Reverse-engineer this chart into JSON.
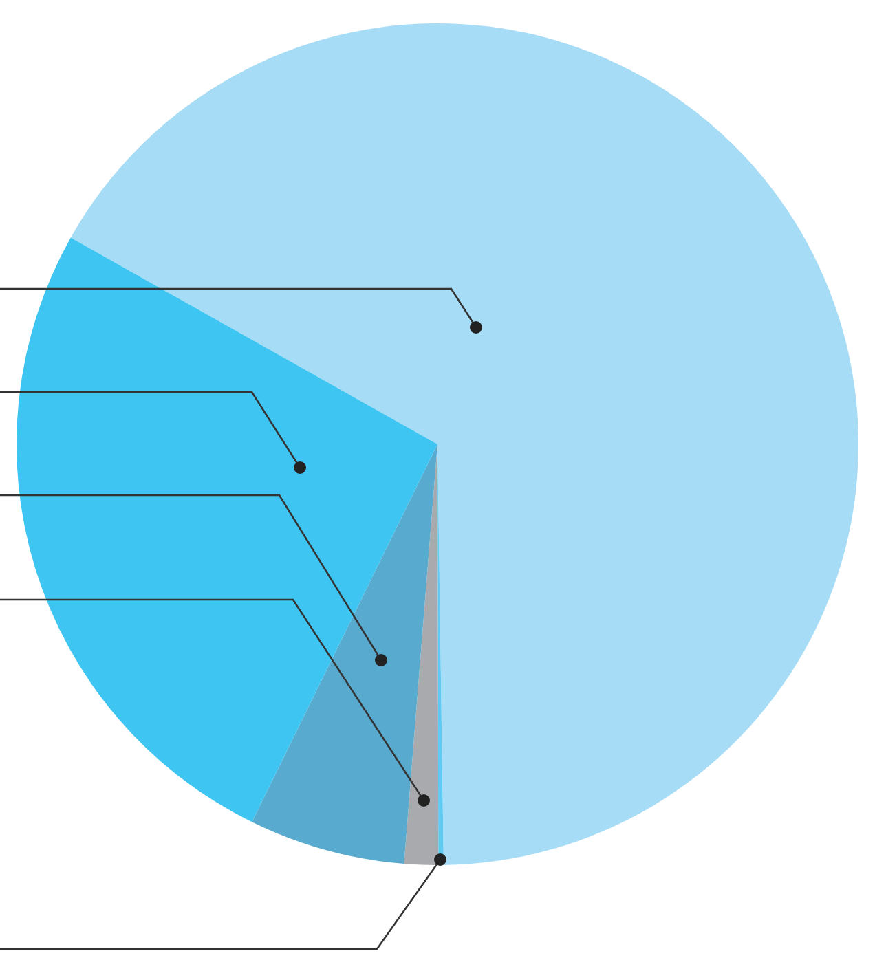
{
  "chart_data": {
    "type": "pie",
    "categories": [
      null,
      null,
      null,
      null,
      null
    ],
    "values": [
      66.6,
      0.2,
      1.3,
      6.0,
      25.9
    ],
    "colors": [
      "#a6dcf6",
      "#5fcaf2",
      "#a9aaae",
      "#58abcf",
      "#3fc5f1"
    ]
  }
}
